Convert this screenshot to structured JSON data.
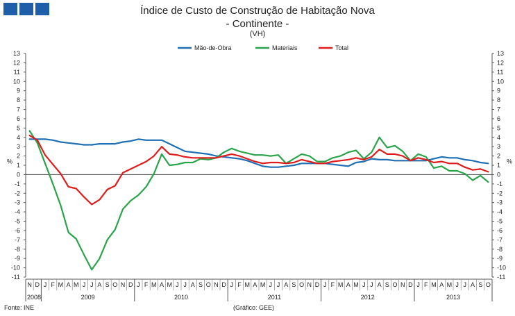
{
  "header": {
    "title": "Índice de Custo de Construção de Habitação Nova",
    "subtitle": "- Continente -",
    "unit_note": "(VH)"
  },
  "footer": {
    "source": "Fonte: INE",
    "credit": "(Gráfico: GEE)"
  },
  "chart_data": {
    "type": "line",
    "title": "Índice de Custo de Construção de Habitação Nova - Continente - (VH)",
    "ylabel": "%",
    "ylabel_right": "%",
    "ylim": [
      -11,
      13
    ],
    "yticks": [
      -11,
      -10,
      -9,
      -8,
      -7,
      -6,
      -5,
      -4,
      -3,
      -2,
      -1,
      0,
      1,
      2,
      3,
      4,
      5,
      6,
      7,
      8,
      9,
      10,
      11,
      12,
      13
    ],
    "grid": false,
    "legend": "top-center",
    "month_labels": [
      "N",
      "D",
      "J",
      "F",
      "M",
      "A",
      "M",
      "J",
      "J",
      "A",
      "S",
      "O",
      "N",
      "D",
      "J",
      "F",
      "M",
      "A",
      "M",
      "J",
      "J",
      "A",
      "S",
      "O",
      "N",
      "D",
      "J",
      "F",
      "M",
      "A",
      "M",
      "J",
      "J",
      "A",
      "S",
      "O",
      "N",
      "D",
      "J",
      "F",
      "M",
      "A",
      "M",
      "J",
      "J",
      "A",
      "S",
      "O",
      "N",
      "D",
      "J",
      "F",
      "M",
      "A",
      "M",
      "J",
      "J",
      "A",
      "S",
      "O"
    ],
    "years": [
      {
        "label": "2008",
        "start": 0,
        "count": 2
      },
      {
        "label": "2009",
        "start": 2,
        "count": 12
      },
      {
        "label": "2010",
        "start": 14,
        "count": 12
      },
      {
        "label": "2011",
        "start": 26,
        "count": 12
      },
      {
        "label": "2012",
        "start": 38,
        "count": 12
      },
      {
        "label": "2013",
        "start": 50,
        "count": 10
      }
    ],
    "series": [
      {
        "name": "Mão-de-Obra",
        "color": "#1f6fb4",
        "values": [
          3.8,
          3.8,
          3.8,
          3.7,
          3.5,
          3.4,
          3.3,
          3.2,
          3.2,
          3.3,
          3.3,
          3.3,
          3.5,
          3.6,
          3.8,
          3.7,
          3.7,
          3.7,
          3.3,
          2.9,
          2.5,
          2.4,
          2.3,
          2.2,
          2.0,
          1.9,
          1.8,
          1.7,
          1.5,
          1.2,
          0.9,
          0.8,
          0.8,
          0.9,
          1.0,
          1.2,
          1.2,
          1.2,
          1.2,
          1.1,
          1.0,
          0.9,
          1.3,
          1.4,
          1.7,
          1.6,
          1.6,
          1.5,
          1.5,
          1.5,
          1.5,
          1.5,
          1.7,
          1.9,
          1.8,
          1.8,
          1.6,
          1.5,
          1.3,
          1.2
        ]
      },
      {
        "name": "Materiais",
        "color": "#2aa44b",
        "values": [
          4.7,
          3.4,
          1.2,
          -1.0,
          -3.3,
          -6.2,
          -6.9,
          -8.6,
          -10.2,
          -9.0,
          -7.0,
          -5.9,
          -3.7,
          -2.8,
          -2.2,
          -1.3,
          0.1,
          2.2,
          1.0,
          1.1,
          1.3,
          1.3,
          1.7,
          1.6,
          1.8,
          2.4,
          2.8,
          2.5,
          2.3,
          2.1,
          2.1,
          2.0,
          2.1,
          1.2,
          1.7,
          2.2,
          2.0,
          1.4,
          1.4,
          1.8,
          2.0,
          2.4,
          2.6,
          1.7,
          2.4,
          4.0,
          2.9,
          3.1,
          2.5,
          1.5,
          2.2,
          1.9,
          0.7,
          0.9,
          0.4,
          0.4,
          0.1,
          -0.6,
          -0.1,
          -0.8
        ]
      },
      {
        "name": "Total",
        "color": "#e01b1b",
        "values": [
          4.2,
          3.7,
          2.1,
          1.1,
          0.1,
          -1.3,
          -1.5,
          -2.4,
          -3.2,
          -2.7,
          -1.6,
          -1.2,
          0.2,
          0.6,
          1.0,
          1.4,
          2.0,
          3.0,
          2.2,
          2.1,
          1.9,
          1.8,
          1.8,
          1.8,
          1.8,
          2.0,
          2.2,
          2.0,
          1.7,
          1.4,
          1.2,
          1.3,
          1.3,
          1.2,
          1.3,
          1.6,
          1.4,
          1.2,
          1.2,
          1.4,
          1.5,
          1.6,
          1.8,
          1.6,
          1.9,
          2.7,
          2.2,
          2.2,
          2.0,
          1.5,
          1.8,
          1.6,
          1.3,
          1.4,
          1.2,
          1.2,
          0.8,
          0.5,
          0.6,
          0.3
        ]
      }
    ]
  }
}
